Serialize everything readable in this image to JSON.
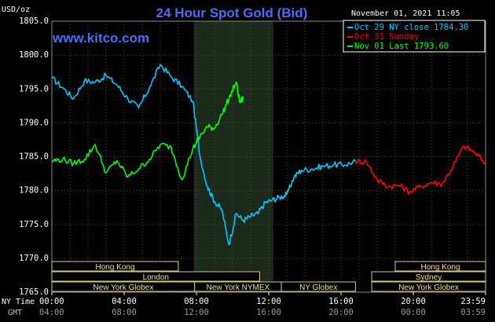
{
  "chart_data": {
    "type": "line",
    "title": "24 Hour Spot Gold (Bid)",
    "watermark": "www.kitco.com",
    "ylabel": "USD/oz",
    "timestamp": "November 01, 2021 11:05",
    "ylim": [
      1765,
      1805
    ],
    "yticks": [
      "1805.0",
      "1800.0",
      "1795.0",
      "1790.0",
      "1785.0",
      "1780.0",
      "1775.0",
      "1770.0",
      "1765.0"
    ],
    "xlim": [
      0,
      24
    ],
    "xticks_ny": [
      "00:00",
      "04:00",
      "08:00",
      "12:00",
      "16:00",
      "20:00",
      "23:59"
    ],
    "xticks_gmt": [
      "04:00",
      "08:00",
      "12:00",
      "16:00",
      "20:00",
      "00:00",
      "03:59"
    ],
    "xaxis_label_ny": "NY Time",
    "xaxis_label_gmt": "GMT",
    "highlight_range": [
      7.85,
      12.25
    ],
    "grid": true,
    "legend_position": "top-right",
    "series": [
      {
        "name": "Oct 29 NY close 1784.30",
        "color": "#00c8ff",
        "x": [
          0,
          0.6,
          1.2,
          1.8,
          2.4,
          3.0,
          3.6,
          4.2,
          4.8,
          5.4,
          6.0,
          6.6,
          7.2,
          7.8,
          8.2,
          8.6,
          9.0,
          9.4,
          9.8,
          10.2,
          10.6,
          11.0,
          11.4,
          11.8,
          12.2,
          12.6,
          13.0,
          13.4,
          13.8,
          14.4,
          15.0,
          15.6,
          16.2,
          16.8
        ],
        "values": [
          1796.6,
          1795.2,
          1793.6,
          1796.2,
          1796.0,
          1797.0,
          1795.6,
          1793.6,
          1792.2,
          1795.2,
          1798.6,
          1796.8,
          1795.4,
          1793.2,
          1785.0,
          1780.6,
          1778.4,
          1777.2,
          1772.0,
          1776.6,
          1775.6,
          1776.2,
          1776.6,
          1778.2,
          1778.6,
          1779.0,
          1779.4,
          1782.0,
          1783.0,
          1783.2,
          1783.6,
          1783.8,
          1783.8,
          1784.3
        ]
      },
      {
        "name": "Oct 31 Sunday",
        "color": "#ff0000",
        "x": [
          16.8,
          17.4,
          18.0,
          18.6,
          19.2,
          19.8,
          20.4,
          21.0,
          21.6,
          22.2,
          22.8,
          23.4,
          23.99
        ],
        "values": [
          1784.3,
          1784.3,
          1781.6,
          1780.6,
          1780.8,
          1779.8,
          1780.6,
          1781.2,
          1781.0,
          1783.6,
          1786.6,
          1785.6,
          1784.1
        ]
      },
      {
        "name": "Nov 01 Last 1793.60",
        "color": "#00ff00",
        "x": [
          0,
          0.6,
          1.2,
          1.8,
          2.4,
          3.0,
          3.6,
          4.2,
          4.8,
          5.4,
          6.0,
          6.6,
          7.2,
          7.8,
          8.2,
          8.6,
          9.0,
          9.4,
          9.8,
          10.2,
          10.4,
          10.6
        ],
        "values": [
          1784.4,
          1784.6,
          1784.0,
          1784.6,
          1786.8,
          1782.6,
          1784.4,
          1782.0,
          1783.2,
          1784.6,
          1786.8,
          1786.4,
          1781.6,
          1786.2,
          1788.0,
          1789.4,
          1789.2,
          1791.2,
          1793.6,
          1796.0,
          1793.0,
          1793.6
        ]
      }
    ],
    "sessions": [
      {
        "label": "Hong Kong",
        "start": 0,
        "end": 7.0,
        "row": 0
      },
      {
        "label": "London",
        "start": 0,
        "end": 11.5,
        "row": 1
      },
      {
        "label": "New York Globex",
        "start": 0,
        "end": 7.9,
        "row": 2
      },
      {
        "label": "New York NYMEX",
        "start": 7.9,
        "end": 12.7,
        "row": 2
      },
      {
        "label": "NY Globex",
        "start": 12.7,
        "end": 16.8,
        "row": 2
      },
      {
        "label": "Hong Kong",
        "start": 19.0,
        "end": 24,
        "row": 0
      },
      {
        "label": "Sydney",
        "start": 17.7,
        "end": 24,
        "row": 1
      },
      {
        "label": "New York Globex",
        "start": 17.7,
        "end": 24,
        "row": 2
      }
    ]
  }
}
